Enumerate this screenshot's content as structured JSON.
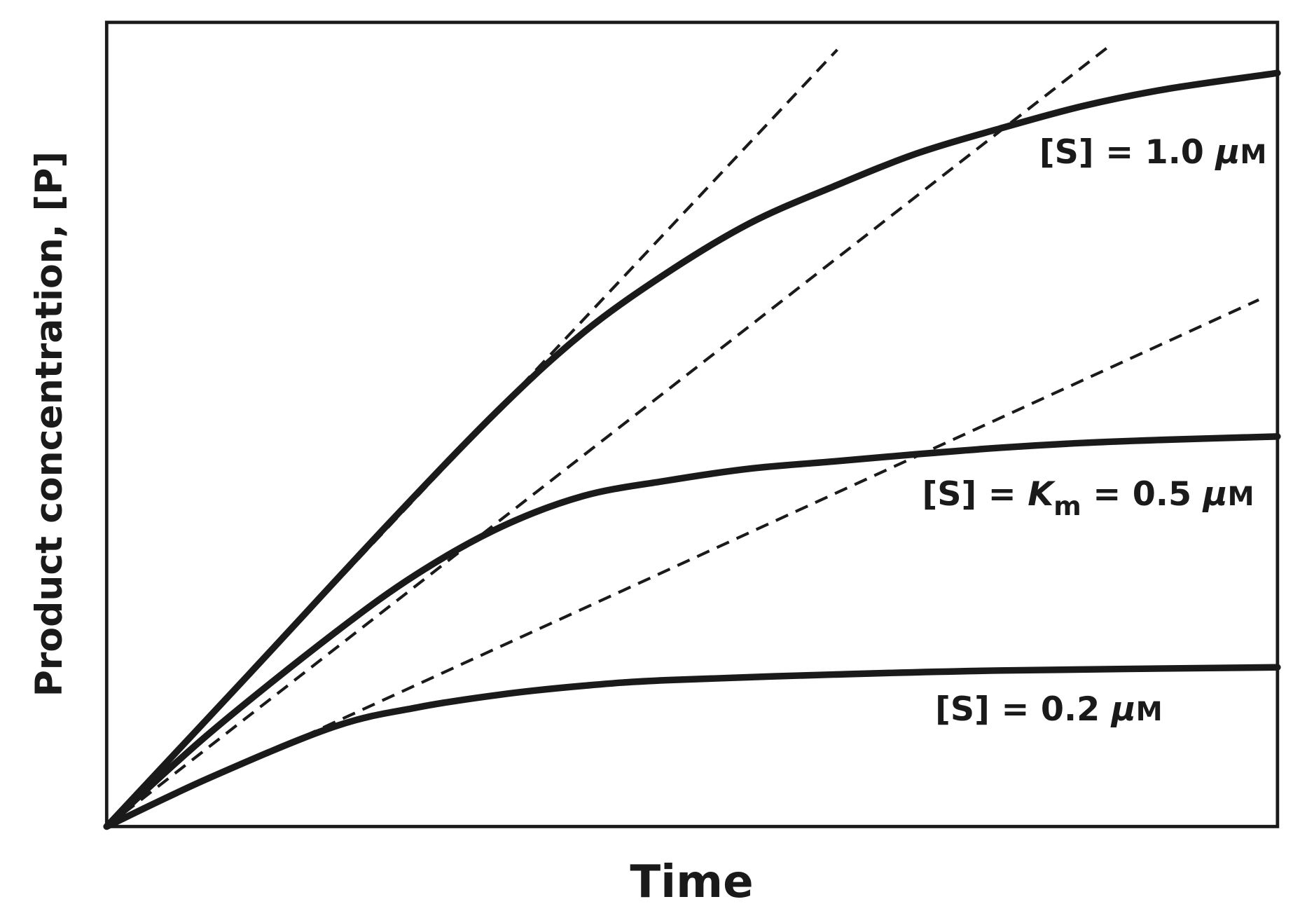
{
  "chart_data": {
    "type": "line",
    "title": "",
    "xlabel": "Time",
    "ylabel": "Product concentration, [P]",
    "xlim": [
      0,
      1
    ],
    "ylim": [
      0,
      1
    ],
    "grid": false,
    "legend": "inline labels at right end of each curve",
    "colors": {
      "curve": "#1a1a1a",
      "tangent": "#1a1a1a",
      "frame": "#1a1a1a"
    },
    "series": [
      {
        "label_parts": [
          {
            "t": "[S] = 1.0 ",
            "s": "normal"
          },
          {
            "t": "μ",
            "s": "italic"
          },
          {
            "t": "M",
            "s": "smallcaps"
          }
        ],
        "x": [
          0,
          0.122,
          0.243,
          0.336,
          0.407,
          0.478,
          0.549,
          0.621,
          0.692,
          0.763,
          0.834,
          0.905,
          1.0
        ],
        "y": [
          0,
          0.19,
          0.38,
          0.52,
          0.614,
          0.688,
          0.75,
          0.796,
          0.837,
          0.868,
          0.896,
          0.917,
          0.937
        ],
        "tangent": {
          "x": [
            0,
            0.624
          ],
          "y": [
            0,
            0.966
          ]
        }
      },
      {
        "label_parts": [
          {
            "t": "[S] = ",
            "s": "normal"
          },
          {
            "t": "K",
            "s": "italic"
          },
          {
            "t": "m",
            "s": "sub"
          },
          {
            "t": " = 0.5 ",
            "s": "normal"
          },
          {
            "t": "μ",
            "s": "italic"
          },
          {
            "t": "M",
            "s": "smallcaps"
          }
        ],
        "x": [
          0,
          0.087,
          0.194,
          0.265,
          0.336,
          0.407,
          0.478,
          0.549,
          0.621,
          0.692,
          0.763,
          0.834,
          0.905,
          1.0
        ],
        "y": [
          0,
          0.115,
          0.24,
          0.314,
          0.372,
          0.411,
          0.43,
          0.445,
          0.454,
          0.463,
          0.471,
          0.477,
          0.481,
          0.485
        ],
        "tangent": {
          "x": [
            0,
            0.855
          ],
          "y": [
            0,
            0.969
          ]
        }
      },
      {
        "label_parts": [
          {
            "t": "[S] = 0.2 ",
            "s": "normal"
          },
          {
            "t": "μ",
            "s": "italic"
          },
          {
            "t": "M",
            "s": "smallcaps"
          }
        ],
        "x": [
          0,
          0.087,
          0.194,
          0.265,
          0.336,
          0.407,
          0.478,
          0.621,
          0.763,
          1.0
        ],
        "y": [
          0,
          0.06,
          0.124,
          0.148,
          0.164,
          0.175,
          0.182,
          0.189,
          0.194,
          0.198
        ],
        "tangent": {
          "x": [
            0,
            0.984
          ],
          "y": [
            0,
            0.655
          ]
        }
      }
    ]
  }
}
